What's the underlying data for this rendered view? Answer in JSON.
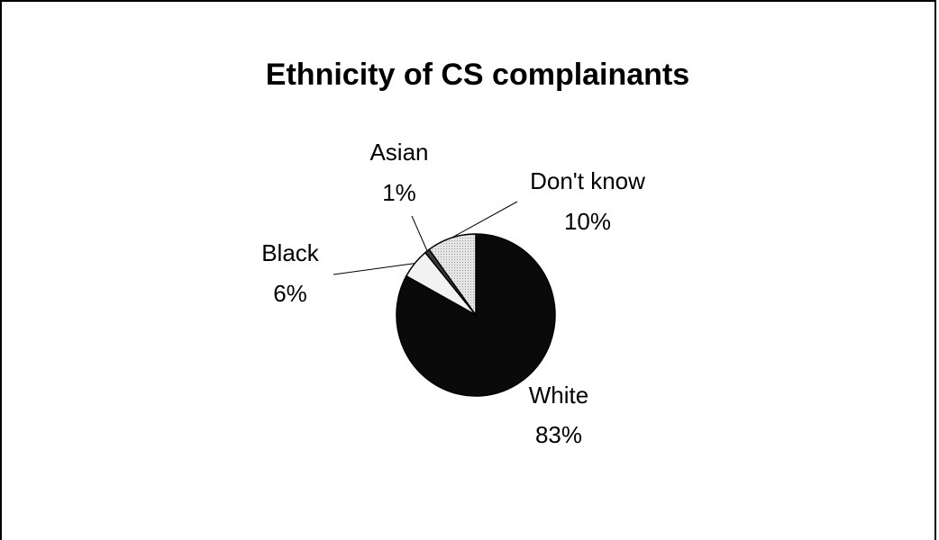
{
  "chart_data": {
    "type": "pie",
    "title": "Ethnicity of CS complainants",
    "slices": [
      {
        "name": "White",
        "value": 83,
        "value_label": "83%",
        "fill": "#0a0a0a"
      },
      {
        "name": "Black",
        "value": 6,
        "value_label": "6%",
        "fill": "#f2f2f2"
      },
      {
        "name": "Asian",
        "value": 1,
        "value_label": "1%",
        "fill": "#3a3a3a"
      },
      {
        "name": "Don't know",
        "value": 10,
        "value_label": "10%",
        "fill": "#d8d8d8"
      }
    ]
  }
}
